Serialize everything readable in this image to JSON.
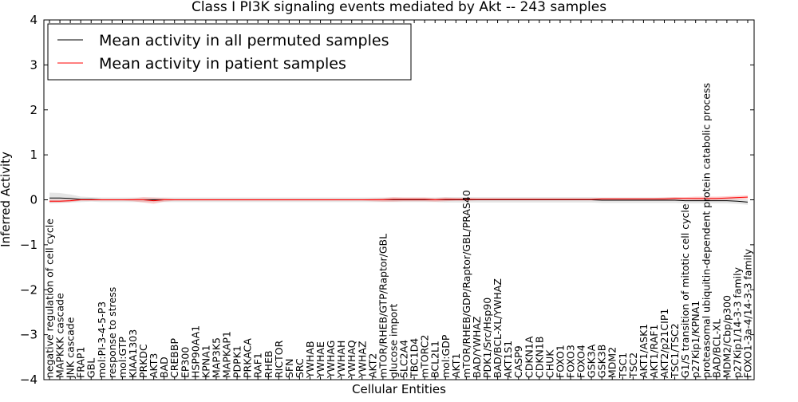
{
  "chart_data": {
    "type": "line",
    "title": "Class I PI3K signaling events mediated by Akt -- 243 samples",
    "xlabel": "Cellular Entities",
    "ylabel": "Inferred Activity",
    "ylim": [
      -4,
      4
    ],
    "yticks": [
      {
        "value": -4,
        "label": "−4"
      },
      {
        "value": -3,
        "label": "−3"
      },
      {
        "value": -2,
        "label": "−2"
      },
      {
        "value": -1,
        "label": "−1"
      },
      {
        "value": 0,
        "label": "0"
      },
      {
        "value": 1,
        "label": "1"
      },
      {
        "value": 2,
        "label": "2"
      },
      {
        "value": 3,
        "label": "3"
      },
      {
        "value": 4,
        "label": "4"
      }
    ],
    "grid": false,
    "legend": {
      "position": "top-left",
      "entries": [
        {
          "label": "Mean activity in all permuted samples",
          "color": "#000000"
        },
        {
          "label": "Mean activity in patient samples",
          "color": "#ff0000"
        }
      ]
    },
    "categories": [
      "negative regulation of cell cycle",
      "MAPKKK cascade",
      "JNK cascade",
      "FRAP1",
      "GBL",
      "mol:PI-3-4-5-P3",
      "response to stress",
      "mol:GTP",
      "KIAA1303",
      "PRKDC",
      "AKT3",
      "BAD",
      "CREBBP",
      "EP300",
      "HSP90AA1",
      "KPNA1",
      "MAP3K5",
      "MAPKAP1",
      "PDPK1",
      "PRKACA",
      "RAF1",
      "RHEB",
      "RICTOR",
      "SFN",
      "SRC",
      "YWHAB",
      "YWHAE",
      "YWHAG",
      "YWHAH",
      "YWHAQ",
      "YWHAZ",
      "AKT2",
      "mTOR/RHEB/GTP/Raptor/GBL",
      "glucose import",
      "SLC2A4",
      "TBC1D4",
      "mTORC2",
      "BCL2L1",
      "mol:GDP",
      "AKT1",
      "mTOR/RHEB/GDP/Raptor/GBL/PRAS40",
      "BAD/YWHAZ",
      "PDK1/Src/Hsp90",
      "BAD/BCL-XL/YWHAZ",
      "AKT1S1",
      "CASP9",
      "CDKN1A",
      "CDKN1B",
      "CHUK",
      "FOXO1",
      "FOXO3",
      "FOXO4",
      "GSK3A",
      "GSK3B",
      "MDM2",
      "TSC1",
      "TSC2",
      "AKT1/ASK1",
      "AKT1/RAF1",
      "AKT2/p21CIP1",
      "TSC1/TSC2",
      "G1/S transition of mitotic cell cycle",
      "p27Kip1/KPNA1",
      "proteasomal ubiquitin-dependent protein catabolic process",
      "BAD/BCL-XL",
      "MDM2/Cbp/p300",
      "p27Kip1/14-3-3 family",
      "FOXO1-3a-4/14-3-3 family"
    ],
    "series": [
      {
        "name": "Mean activity in all permuted samples",
        "color": "#000000",
        "values": [
          0.04,
          0.04,
          0.03,
          0.01,
          0.01,
          0.0,
          0.0,
          0.0,
          0.0,
          0.0,
          0.0,
          0.0,
          0.0,
          0.0,
          0.0,
          0.0,
          0.0,
          0.0,
          0.0,
          0.0,
          0.0,
          0.0,
          0.0,
          0.0,
          0.0,
          0.0,
          0.0,
          0.0,
          0.0,
          0.0,
          0.0,
          0.0,
          0.0,
          0.0,
          0.0,
          0.0,
          0.0,
          0.0,
          0.0,
          0.0,
          0.0,
          0.0,
          0.0,
          0.0,
          0.0,
          0.0,
          0.0,
          0.0,
          0.0,
          0.0,
          0.0,
          0.0,
          0.0,
          -0.01,
          -0.01,
          -0.01,
          -0.01,
          -0.01,
          -0.01,
          -0.01,
          -0.01,
          -0.02,
          -0.02,
          -0.02,
          -0.02,
          -0.02,
          -0.03,
          -0.05
        ],
        "band": [
          0.12,
          0.11,
          0.09,
          0.06,
          0.05,
          0.05,
          0.05,
          0.05,
          0.05,
          0.05,
          0.05,
          0.05,
          0.05,
          0.05,
          0.05,
          0.05,
          0.05,
          0.05,
          0.05,
          0.05,
          0.05,
          0.05,
          0.05,
          0.05,
          0.05,
          0.05,
          0.05,
          0.05,
          0.05,
          0.05,
          0.05,
          0.05,
          0.05,
          0.05,
          0.05,
          0.05,
          0.05,
          0.05,
          0.06,
          0.06,
          0.06,
          0.06,
          0.06,
          0.06,
          0.06,
          0.06,
          0.06,
          0.06,
          0.06,
          0.06,
          0.06,
          0.06,
          0.06,
          0.06,
          0.06,
          0.06,
          0.06,
          0.06,
          0.06,
          0.06,
          0.06,
          0.06,
          0.06,
          0.06,
          0.06,
          0.06,
          0.06,
          0.06
        ]
      },
      {
        "name": "Mean activity in patient samples",
        "color": "#ff0000",
        "values": [
          -0.03,
          -0.03,
          -0.02,
          0.0,
          0.0,
          0.0,
          0.0,
          0.0,
          0.0,
          0.0,
          -0.02,
          0.0,
          0.0,
          0.0,
          0.0,
          0.0,
          0.0,
          0.0,
          0.0,
          0.0,
          0.0,
          0.0,
          0.0,
          0.0,
          0.0,
          0.0,
          0.0,
          0.0,
          0.0,
          0.0,
          0.0,
          0.0,
          0.0,
          0.01,
          0.01,
          0.01,
          0.01,
          0.0,
          0.01,
          0.01,
          0.01,
          0.01,
          0.01,
          0.01,
          0.01,
          0.01,
          0.01,
          0.01,
          0.01,
          0.01,
          0.01,
          0.01,
          0.01,
          0.02,
          0.02,
          0.02,
          0.02,
          0.02,
          0.02,
          0.02,
          0.03,
          0.03,
          0.03,
          0.03,
          0.03,
          0.04,
          0.05,
          0.06
        ],
        "band": [
          0.03,
          0.03,
          0.03,
          0.02,
          0.02,
          0.02,
          0.02,
          0.02,
          0.03,
          0.06,
          0.07,
          0.04,
          0.02,
          0.02,
          0.02,
          0.02,
          0.02,
          0.02,
          0.02,
          0.02,
          0.02,
          0.02,
          0.02,
          0.02,
          0.02,
          0.02,
          0.02,
          0.02,
          0.02,
          0.02,
          0.02,
          0.03,
          0.04,
          0.05,
          0.04,
          0.04,
          0.04,
          0.04,
          0.04,
          0.03,
          0.03,
          0.02,
          0.02,
          0.02,
          0.02,
          0.02,
          0.02,
          0.02,
          0.02,
          0.02,
          0.02,
          0.02,
          0.02,
          0.02,
          0.02,
          0.02,
          0.02,
          0.02,
          0.02,
          0.03,
          0.03,
          0.03,
          0.04,
          0.04,
          0.04,
          0.04,
          0.04,
          0.04
        ]
      }
    ]
  }
}
